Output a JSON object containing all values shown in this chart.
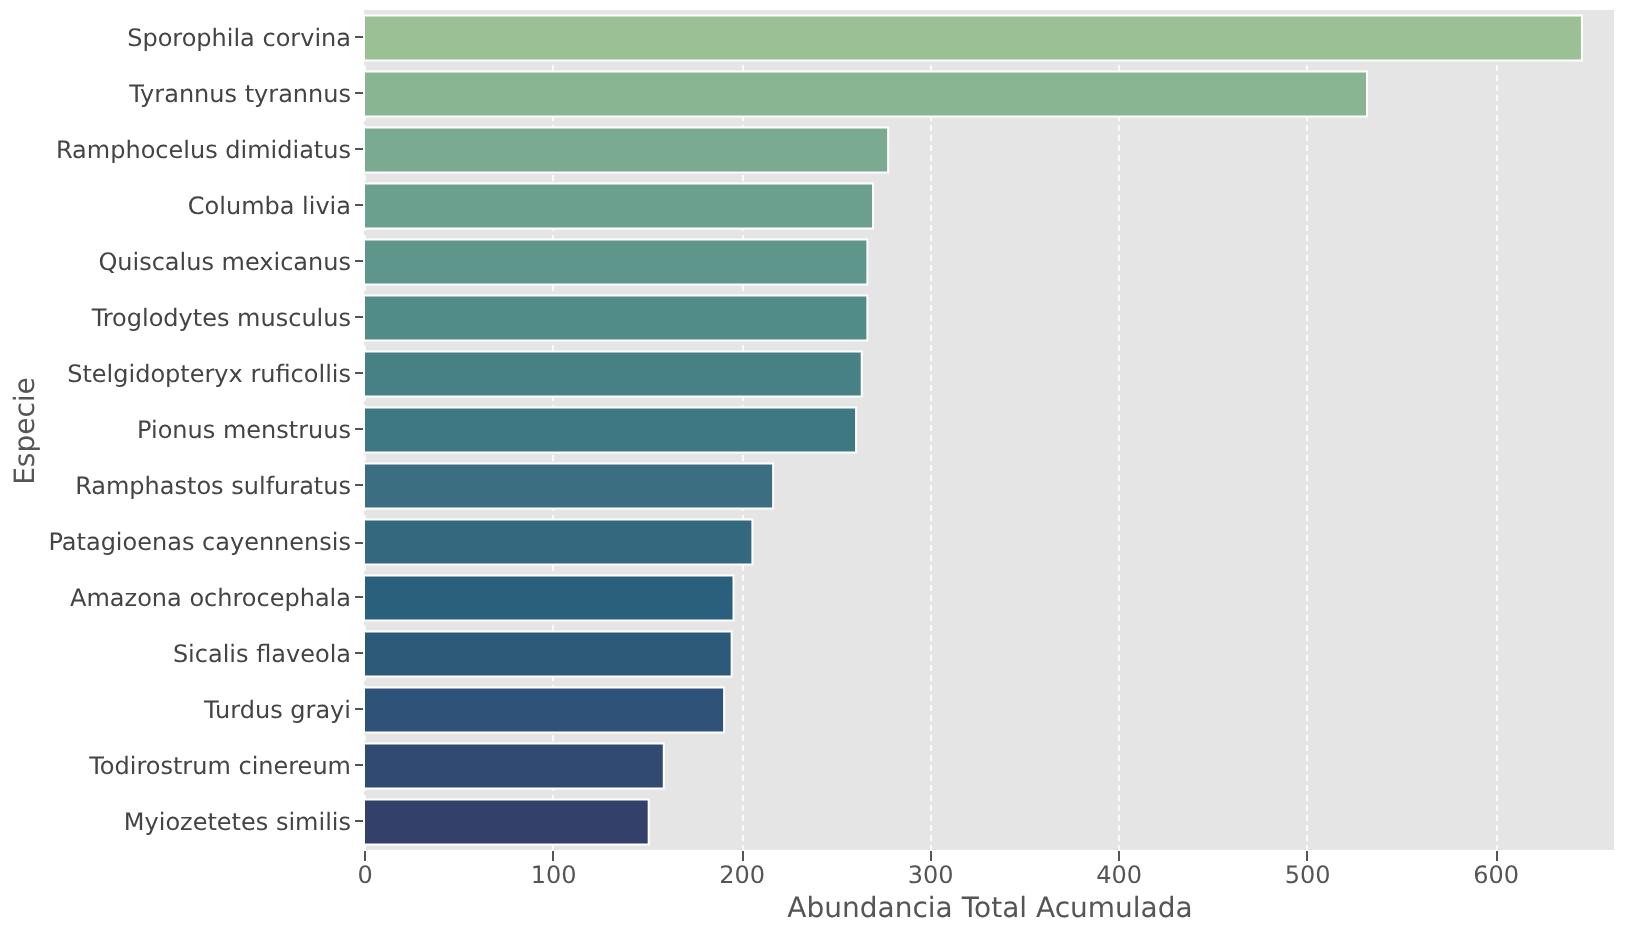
{
  "chart_data": {
    "type": "bar",
    "orientation": "horizontal",
    "xlabel": "Abundancia Total Acumulada",
    "ylabel": "Especie",
    "categories": [
      "Sporophila corvina",
      "Tyrannus tyrannus",
      "Ramphocelus dimidiatus",
      "Columba livia",
      "Quiscalus mexicanus",
      "Troglodytes musculus",
      "Stelgidopteryx ruficollis",
      "Pionus menstruus",
      "Ramphastos sulfuratus",
      "Patagioenas cayennensis",
      "Amazona ochrocephala",
      "Sicalis flaveola",
      "Turdus grayi",
      "Todirostrum cinereum",
      "Myiozetetes similis"
    ],
    "values": [
      646,
      532,
      278,
      270,
      267,
      267,
      264,
      261,
      217,
      206,
      196,
      195,
      191,
      159,
      151
    ],
    "colors": [
      "#9bc095",
      "#8ab592",
      "#7aaa8f",
      "#6aa08d",
      "#5e968b",
      "#528c88",
      "#488185",
      "#3e7882",
      "#3a6e80",
      "#33687f",
      "#2a607c",
      "#2c5a78",
      "#2e5278",
      "#304a72",
      "#33406a"
    ],
    "xlim": [
      0,
      663
    ],
    "xticks": [
      0,
      100,
      200,
      300,
      400,
      500,
      600
    ],
    "grid": "x"
  }
}
